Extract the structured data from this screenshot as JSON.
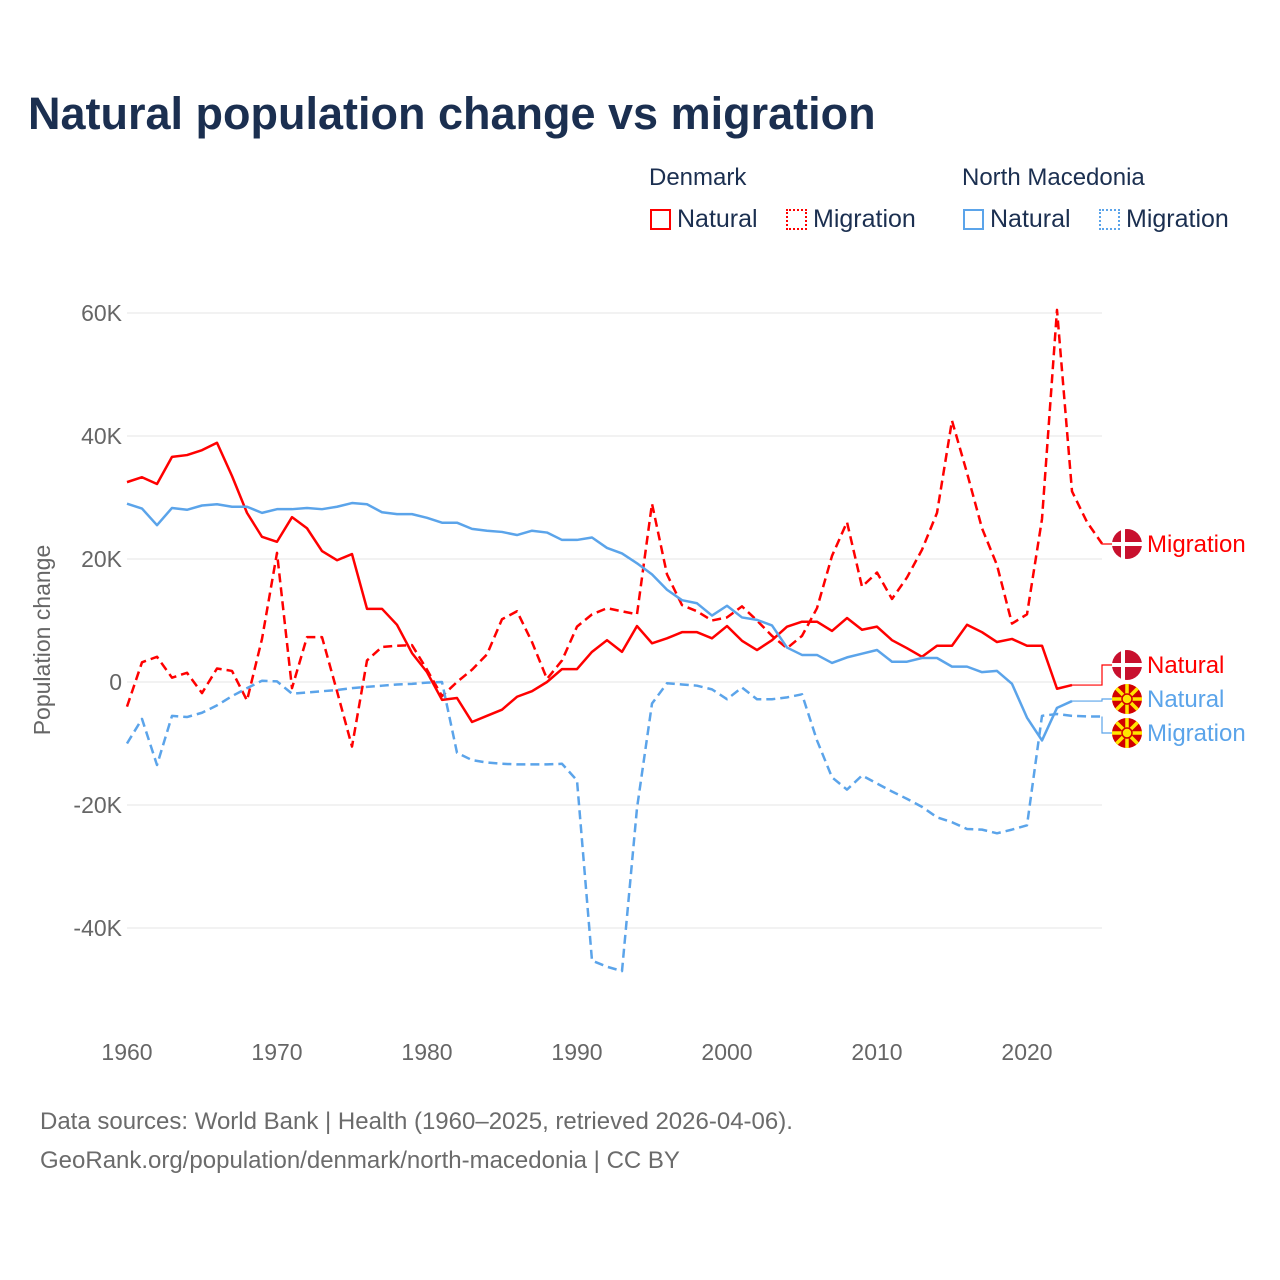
{
  "title": "Natural population change vs migration",
  "legend": {
    "groups": [
      {
        "name": "Denmark",
        "color": "#ff0000",
        "items": [
          "Natural",
          "Migration"
        ]
      },
      {
        "name": "North Macedonia",
        "color": "#5ba4ea",
        "items": [
          "Natural",
          "Migration"
        ]
      }
    ]
  },
  "footer": {
    "line1": "Data sources: World Bank | Health (1960–2025, retrieved 2026-04-06).",
    "line2": "GeoRank.org/population/denmark/north-macedonia | CC BY"
  },
  "chart_data": {
    "type": "line",
    "title": "Natural population change vs migration",
    "xlabel": "",
    "ylabel": "Population change",
    "xlim": [
      1960,
      2025
    ],
    "ylim": [
      -50000,
      62000
    ],
    "x_ticks": [
      1960,
      1970,
      1980,
      1990,
      2000,
      2010,
      2020
    ],
    "y_ticks": [
      {
        "v": 60000,
        "label": "60K"
      },
      {
        "v": 40000,
        "label": "40K"
      },
      {
        "v": 20000,
        "label": "20K"
      },
      {
        "v": 0,
        "label": "0"
      },
      {
        "v": -20000,
        "label": "-20K"
      },
      {
        "v": -40000,
        "label": "-40K"
      }
    ],
    "grid": true,
    "legend_position": "top-right",
    "series": [
      {
        "name": "Denmark Natural",
        "end_label": "Natural",
        "country": "Denmark",
        "color": "#ff0000",
        "dashed": false,
        "start": 1960,
        "values": [
          32.5,
          33.3,
          32.2,
          36.6,
          36.9,
          37.7,
          38.9,
          33.5,
          27.5,
          23.6,
          22.8,
          26.8,
          25,
          21.3,
          19.8,
          20.8,
          11.9,
          11.9,
          9.3,
          4.7,
          1.6,
          -2.9,
          -2.6,
          -6.5,
          -5.5,
          -4.5,
          -2.4,
          -1.5,
          0,
          2.1,
          2.1,
          4.9,
          6.8,
          4.9,
          9.1,
          6.3,
          7.1,
          8.1,
          8.1,
          7.1,
          9.1,
          6.7,
          5.2,
          6.8,
          9,
          9.8,
          9.8,
          8.3,
          10.4,
          8.5,
          9,
          6.8,
          5.5,
          4.1,
          5.9,
          5.9,
          9.3,
          8.1,
          6.5,
          7,
          5.9,
          5.9,
          -1.1,
          -0.5
        ]
      },
      {
        "name": "Denmark Migration",
        "end_label": "Migration",
        "country": "Denmark",
        "color": "#ff0000",
        "dashed": true,
        "start": 1960,
        "values": [
          -4,
          3.2,
          4.1,
          0.7,
          1.5,
          -1.8,
          2.2,
          1.8,
          -3,
          7,
          21,
          -1,
          7.3,
          7.3,
          -1.5,
          -10.5,
          3.5,
          5.7,
          5.9,
          6,
          2,
          -2.3,
          0,
          2,
          4.5,
          10.2,
          11.5,
          6.5,
          0.5,
          3.5,
          9,
          11,
          12,
          11.5,
          11,
          29,
          17.5,
          12.5,
          11.5,
          10,
          10.5,
          12.3,
          10,
          7.5,
          5.5,
          7.5,
          12,
          20.5,
          26,
          15.5,
          17.8,
          13.5,
          17,
          21.5,
          27.5,
          42.5,
          34,
          25,
          19,
          9.5,
          11,
          26.5,
          60.5,
          31,
          26,
          22.5
        ]
      },
      {
        "name": "North Macedonia Natural",
        "end_label": "Natural",
        "country": "North Macedonia",
        "color": "#5ba4ea",
        "dashed": false,
        "start": 1960,
        "values": [
          29,
          28.2,
          25.5,
          28.3,
          28,
          28.7,
          28.9,
          28.5,
          28.5,
          27.5,
          28.1,
          28.1,
          28.3,
          28.1,
          28.5,
          29.1,
          28.9,
          27.6,
          27.3,
          27.3,
          26.7,
          25.9,
          25.9,
          24.9,
          24.6,
          24.4,
          23.9,
          24.6,
          24.3,
          23.1,
          23.1,
          23.5,
          21.8,
          20.9,
          19.3,
          17.5,
          15,
          13.3,
          12.8,
          10.8,
          12.4,
          10.5,
          10.1,
          9.2,
          5.6,
          4.4,
          4.4,
          3.1,
          4,
          4.6,
          5.2,
          3.3,
          3.3,
          3.9,
          3.9,
          2.5,
          2.5,
          1.6,
          1.8,
          -0.3,
          -5.8,
          -9.5,
          -4.2,
          -3.1
        ]
      },
      {
        "name": "North Macedonia Migration",
        "end_label": "Migration",
        "country": "North Macedonia",
        "color": "#5ba4ea",
        "dashed": true,
        "start": 1960,
        "values": [
          -10,
          -6,
          -13.5,
          -5.5,
          -5.7,
          -5,
          -3.8,
          -2.3,
          -1,
          0.2,
          0.1,
          -1.9,
          -1.7,
          -1.5,
          -1.3,
          -1,
          -0.8,
          -0.6,
          -0.4,
          -0.3,
          -0.1,
          0,
          -11.5,
          -12.7,
          -13.1,
          -13.3,
          -13.4,
          -13.4,
          -13.4,
          -13.3,
          -16,
          -45.3,
          -46.3,
          -47,
          -20.5,
          -3.5,
          -0.2,
          -0.4,
          -0.6,
          -1.2,
          -2.8,
          -0.9,
          -2.8,
          -2.8,
          -2.5,
          -2,
          -9.5,
          -15.5,
          -17.5,
          -15.2,
          -16.5,
          -17.8,
          -19,
          -20.3,
          -22,
          -22.8,
          -23.9,
          -24,
          -24.6,
          -24,
          -23.3,
          -5.5,
          -5.2,
          -5.5,
          -5.6,
          -5.6
        ]
      }
    ],
    "value_unit": "thousands"
  }
}
